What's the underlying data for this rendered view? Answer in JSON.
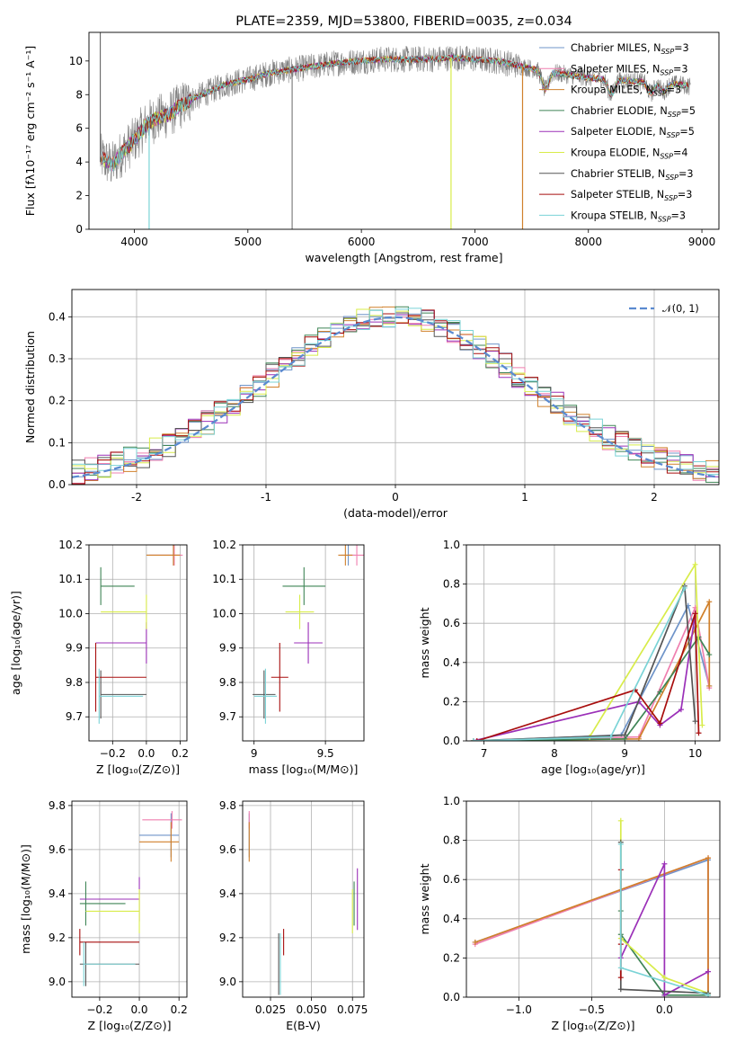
{
  "colors": [
    "#6f94c9",
    "#ef7faf",
    "#d0802b",
    "#3f8556",
    "#9b30b8",
    "#d8ec4a",
    "#555555",
    "#a80e0e",
    "#7ad3d6"
  ],
  "ref_color": "#5a8ad0",
  "chart_data": [
    {
      "id": "spectrum",
      "type": "line",
      "title": "PLATE=2359, MJD=53800, FIBERID=0035, z=0.034",
      "xlabel": "wavelength [Angstrom, rest frame]",
      "ylabel": "Flux [fλ10⁻¹⁷ erg cm⁻² s⁻¹ A⁻¹]",
      "xlim": [
        3600,
        9150
      ],
      "ylim": [
        0,
        11.7
      ],
      "xticks": [
        4000,
        5000,
        6000,
        7000,
        8000,
        9000
      ],
      "yticks": [
        0,
        2,
        4,
        6,
        8,
        10
      ],
      "grid": false,
      "legend_position": "top-right",
      "legend": [
        {
          "label": "Chabrier MILES, N",
          "sub": "SSP",
          "suffix": "=3"
        },
        {
          "label": "Salpeter MILES, N",
          "sub": "SSP",
          "suffix": "=3"
        },
        {
          "label": "Kroupa MILES, N",
          "sub": "SSP",
          "suffix": "=3"
        },
        {
          "label": "Chabrier ELODIE, N",
          "sub": "SSP",
          "suffix": "=5"
        },
        {
          "label": "Salpeter ELODIE, N",
          "sub": "SSP",
          "suffix": "=5"
        },
        {
          "label": "Kroupa ELODIE, N",
          "sub": "SSP",
          "suffix": "=4"
        },
        {
          "label": "Chabrier STELIB, N",
          "sub": "SSP",
          "suffix": "=3"
        },
        {
          "label": "Salpeter STELIB, N",
          "sub": "SSP",
          "suffix": "=3"
        },
        {
          "label": "Kroupa STELIB, N",
          "sub": "SSP",
          "suffix": "=3"
        }
      ],
      "continuum": [
        [
          3700,
          4.3
        ],
        [
          3800,
          3.8
        ],
        [
          3900,
          4.6
        ],
        [
          4000,
          5.3
        ],
        [
          4100,
          6.2
        ],
        [
          4200,
          6.6
        ],
        [
          4300,
          6.8
        ],
        [
          4400,
          7.3
        ],
        [
          4500,
          7.7
        ],
        [
          4600,
          8.0
        ],
        [
          4800,
          8.6
        ],
        [
          5000,
          8.9
        ],
        [
          5200,
          9.3
        ],
        [
          5400,
          9.5
        ],
        [
          5600,
          9.7
        ],
        [
          5800,
          9.9
        ],
        [
          6000,
          10.0
        ],
        [
          6200,
          10.1
        ],
        [
          6400,
          10.1
        ],
        [
          6600,
          10.1
        ],
        [
          6800,
          10.2
        ],
        [
          7000,
          10.1
        ],
        [
          7200,
          10.0
        ],
        [
          7400,
          9.7
        ],
        [
          7600,
          9.4
        ],
        [
          7800,
          9.2
        ],
        [
          8000,
          9.0
        ],
        [
          8200,
          8.9
        ],
        [
          8400,
          8.8
        ],
        [
          8600,
          8.7
        ],
        [
          8800,
          8.6
        ],
        [
          8900,
          8.5
        ]
      ],
      "dips": [
        [
          7620,
          8.3
        ],
        [
          8200,
          8.0
        ],
        [
          8550,
          8.1
        ],
        [
          8660,
          8.2
        ]
      ],
      "dropouts": [
        {
          "wavelength": 3700,
          "to": 4.0
        },
        {
          "wavelength": 4130,
          "to": 0.0
        },
        {
          "wavelength": 5390,
          "to": 0.0
        },
        {
          "wavelength": 6790,
          "to": 0.0
        },
        {
          "wavelength": 7420,
          "to": 0.0
        }
      ]
    },
    {
      "id": "residuals",
      "type": "line",
      "xlabel": "(data-model)/error",
      "ylabel": "Normed distribution",
      "xlim": [
        -2.5,
        2.5
      ],
      "ylim": [
        0,
        0.465
      ],
      "xticks": [
        -2,
        -1,
        0,
        1,
        2
      ],
      "yticks": [
        0.0,
        0.1,
        0.2,
        0.3,
        0.4
      ],
      "grid": true,
      "legend_position": "top-right",
      "reference": {
        "label": "𝒩(0, 1)",
        "mean": 0,
        "sigma": 1
      },
      "bin_width": 0.1
    },
    {
      "id": "z-age",
      "type": "scatter",
      "xlabel": "Z [log₁₀(Z/Z⊙)]",
      "ylabel": "age  [log₁₀(age/yr)]",
      "xlim": [
        -0.34,
        0.24
      ],
      "ylim": [
        9.63,
        10.2
      ],
      "xticks": [
        -0.2,
        0.0,
        0.2
      ],
      "xticklabels": [
        "−0.2",
        "0.0",
        "0.2"
      ],
      "yticks": [
        9.7,
        9.8,
        9.9,
        10.0,
        10.1,
        10.2
      ],
      "grid": true,
      "x": [
        0.16,
        0.165,
        0.16,
        -0.27,
        0.0,
        0.0,
        -0.27,
        -0.3,
        -0.28
      ],
      "y": [
        10.17,
        10.17,
        10.17,
        10.08,
        9.915,
        10.005,
        9.765,
        9.815,
        9.76
      ],
      "xerr_low": [
        0.16,
        0.15,
        0.16,
        0.0,
        0.3,
        0.27,
        0.0,
        0.0,
        0.0
      ],
      "xerr_high": [
        0.04,
        0.05,
        0.04,
        0.2,
        0.0,
        0.0,
        0.27,
        0.3,
        0.26
      ],
      "yerr": [
        0.03,
        0.03,
        0.03,
        0.055,
        0.06,
        0.05,
        0.07,
        0.1,
        0.08
      ]
    },
    {
      "id": "mass-age",
      "type": "scatter",
      "xlabel": "mass [log₁₀(M/M⊙)]",
      "ylabel": "",
      "xlim": [
        8.92,
        9.77
      ],
      "ylim": [
        9.63,
        10.2
      ],
      "xticks": [
        9.0,
        9.5
      ],
      "yticks": [
        9.7,
        9.8,
        9.9,
        10.0,
        10.1,
        10.2
      ],
      "grid": true,
      "x": [
        9.66,
        9.72,
        9.64,
        9.35,
        9.38,
        9.32,
        9.07,
        9.18,
        9.08
      ],
      "y": [
        10.17,
        10.17,
        10.17,
        10.08,
        9.915,
        10.005,
        9.765,
        9.815,
        9.76
      ],
      "xerr": [
        0.05,
        0.06,
        0.05,
        0.15,
        0.1,
        0.1,
        0.08,
        0.06,
        0.08
      ],
      "yerr": [
        0.03,
        0.03,
        0.03,
        0.055,
        0.06,
        0.05,
        0.07,
        0.1,
        0.08
      ]
    },
    {
      "id": "age-weight",
      "type": "line",
      "xlabel": "age  [log₁₀(age/yr)]",
      "ylabel": "mass weight",
      "xlim": [
        6.75,
        10.35
      ],
      "ylim": [
        0,
        1.0
      ],
      "xticks": [
        7,
        8,
        9,
        10
      ],
      "yticks": [
        0.0,
        0.2,
        0.4,
        0.6,
        0.8,
        1.0
      ],
      "grid": true,
      "series": [
        {
          "x": [
            6.85,
            8.95,
            9.9,
            10.2
          ],
          "y": [
            0.0,
            0.03,
            0.69,
            0.28
          ]
        },
        {
          "x": [
            6.9,
            9.2,
            10.0,
            10.2
          ],
          "y": [
            0.0,
            0.02,
            0.68,
            0.27
          ]
        },
        {
          "x": [
            6.85,
            9.2,
            10.2,
            10.2
          ],
          "y": [
            0.0,
            0.01,
            0.71,
            0.28
          ]
        },
        {
          "x": [
            6.85,
            9.0,
            9.5,
            10.05,
            10.2
          ],
          "y": [
            0.0,
            0.01,
            0.25,
            0.53,
            0.44
          ]
        },
        {
          "x": [
            6.85,
            9.2,
            9.5,
            9.8,
            10.0
          ],
          "y": [
            0.0,
            0.2,
            0.08,
            0.16,
            0.65
          ]
        },
        {
          "x": [
            6.85,
            8.5,
            10.0,
            10.1
          ],
          "y": [
            0.0,
            0.02,
            0.9,
            0.08
          ]
        },
        {
          "x": [
            6.85,
            9.0,
            9.85,
            10.0
          ],
          "y": [
            0.0,
            0.03,
            0.79,
            0.1
          ]
        },
        {
          "x": [
            6.9,
            9.15,
            9.5,
            10.0,
            10.05
          ],
          "y": [
            0.0,
            0.26,
            0.09,
            0.65,
            0.04
          ]
        },
        {
          "x": [
            6.85,
            8.8,
            9.85
          ],
          "y": [
            0.0,
            0.02,
            0.78
          ]
        }
      ]
    },
    {
      "id": "z-mass",
      "type": "scatter",
      "xlabel": "Z [log₁₀(Z/Z⊙)]",
      "ylabel": "mass [log₁₀(M/M⊙)]",
      "xlim": [
        -0.34,
        0.24
      ],
      "ylim": [
        8.93,
        9.82
      ],
      "xticks": [
        -0.2,
        0.0,
        0.2
      ],
      "xticklabels": [
        "−0.2",
        "0.0",
        "0.2"
      ],
      "yticks": [
        9.0,
        9.2,
        9.4,
        9.6,
        9.8
      ],
      "grid": true,
      "x": [
        0.16,
        0.165,
        0.16,
        -0.27,
        0.0,
        0.0,
        -0.27,
        -0.3,
        -0.28
      ],
      "y": [
        9.665,
        9.735,
        9.635,
        9.355,
        9.375,
        9.32,
        9.08,
        9.18,
        9.08
      ],
      "xerr_low": [
        0.16,
        0.15,
        0.16,
        0.03,
        0.3,
        0.27,
        0.03,
        0.0,
        0.0
      ],
      "xerr_high": [
        0.04,
        0.05,
        0.04,
        0.2,
        0.0,
        0.0,
        0.27,
        0.3,
        0.26
      ],
      "yerr": [
        0.1,
        0.04,
        0.09,
        0.1,
        0.1,
        0.1,
        0.1,
        0.06,
        0.1
      ]
    },
    {
      "id": "ebv-mass",
      "type": "scatter",
      "xlabel": "E(B-V)",
      "ylabel": "",
      "xlim": [
        0.008,
        0.082
      ],
      "ylim": [
        8.93,
        9.82
      ],
      "xticks": [
        0.025,
        0.05,
        0.075
      ],
      "xticklabels": [
        "0.025",
        "0.050",
        "0.075"
      ],
      "yticks": [
        9.0,
        9.2,
        9.4,
        9.6,
        9.8
      ],
      "grid": true,
      "x": [
        0.012,
        0.012,
        0.012,
        0.076,
        0.078,
        0.075,
        0.03,
        0.033,
        0.031
      ],
      "y": [
        9.665,
        9.735,
        9.635,
        9.355,
        9.375,
        9.32,
        9.08,
        9.18,
        9.08
      ],
      "yerr": [
        0.1,
        0.04,
        0.09,
        0.1,
        0.14,
        0.1,
        0.14,
        0.06,
        0.14
      ]
    },
    {
      "id": "z-weight",
      "type": "line",
      "xlabel": "Z [log₁₀(Z/Z⊙)]",
      "ylabel": "mass weight",
      "xlim": [
        -1.36,
        0.38
      ],
      "ylim": [
        0,
        1.0
      ],
      "xticks": [
        -1.0,
        -0.5,
        0.0
      ],
      "xticklabels": [
        "−1.0",
        "−0.5",
        "0.0"
      ],
      "yticks": [
        0.0,
        0.2,
        0.4,
        0.6,
        0.8,
        1.0
      ],
      "grid": true,
      "series": [
        {
          "x": [
            -1.3,
            0.3,
            0.3
          ],
          "y": [
            0.28,
            0.7,
            0.02
          ]
        },
        {
          "x": [
            -1.3,
            0.3,
            0.3
          ],
          "y": [
            0.27,
            0.71,
            0.02
          ]
        },
        {
          "x": [
            -1.3,
            0.3,
            0.3
          ],
          "y": [
            0.28,
            0.71,
            0.02
          ]
        },
        {
          "x": [
            -0.3,
            -0.3,
            0.0,
            0.3
          ],
          "y": [
            0.44,
            0.32,
            0.01,
            0.01
          ]
        },
        {
          "x": [
            -0.3,
            0.0,
            0.0,
            0.3
          ],
          "y": [
            0.2,
            0.68,
            0.01,
            0.13
          ]
        },
        {
          "x": [
            -0.3,
            -0.3,
            0.0,
            0.3
          ],
          "y": [
            0.9,
            0.3,
            0.1,
            0.02
          ]
        },
        {
          "x": [
            -0.3,
            -0.3,
            0.3
          ],
          "y": [
            0.79,
            0.04,
            0.02
          ]
        },
        {
          "x": [
            -0.3,
            -0.3,
            -0.3
          ],
          "y": [
            0.65,
            0.27,
            0.1
          ]
        },
        {
          "x": [
            -0.3,
            -0.3,
            0.3
          ],
          "y": [
            0.78,
            0.15,
            0.01
          ]
        }
      ]
    }
  ]
}
